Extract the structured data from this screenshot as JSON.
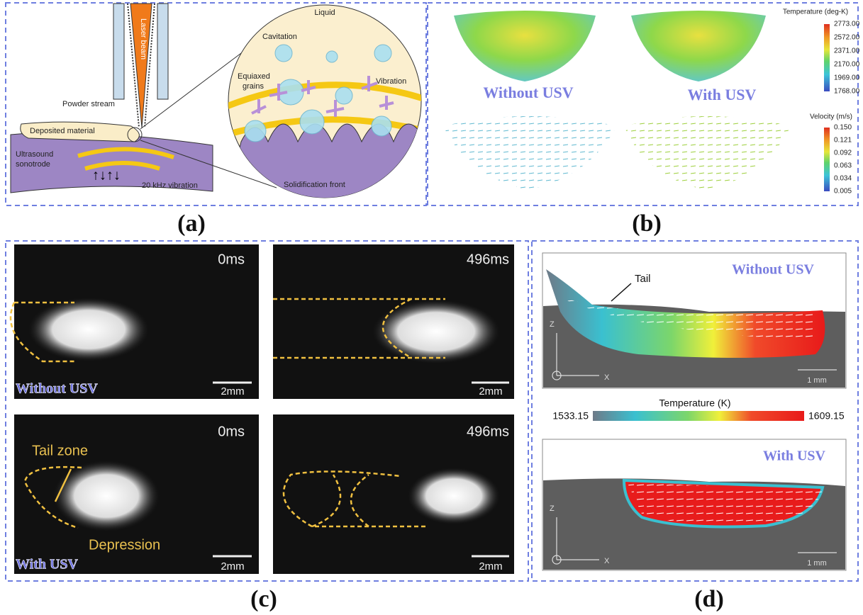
{
  "panels": {
    "a": {
      "label": "(a)",
      "liquid": "Liquid",
      "laser_beam": "Laser beam",
      "cavitation": "Cavitation",
      "powder_stream": "Powder stream",
      "equiaxed_grains": [
        "Equiaxed",
        "grains"
      ],
      "vibration": "Vibration",
      "deposited_material": "Deposited material",
      "ultrasound_sonotrode": [
        "Ultrasound",
        "sonotrode"
      ],
      "frequency": "20 kHz vibration",
      "solidification_front": "Solidification front"
    },
    "b": {
      "label": "(b)",
      "without": "Without USV",
      "with": "With USV",
      "temperature_title": "Temperature (deg-K)",
      "temperature_ticks": [
        "2773.00",
        "2572.00",
        "2371.00",
        "2170.00",
        "1969.00",
        "1768.00"
      ],
      "velocity_title": "Velocity (m/s)",
      "velocity_ticks": [
        "0.150",
        "0.121",
        "0.092",
        "0.063",
        "0.034",
        "0.005"
      ]
    },
    "c": {
      "label": "(c)",
      "images": [
        {
          "time": "0ms",
          "scale": "2mm",
          "caption": "Without USV"
        },
        {
          "time": "496ms",
          "scale": "2mm"
        },
        {
          "time": "0ms",
          "scale": "2mm",
          "caption": "With USV",
          "tail_zone": "Tail zone",
          "depression": "Depression"
        },
        {
          "time": "496ms",
          "scale": "2mm"
        }
      ]
    },
    "d": {
      "label": "(d)",
      "colorbar_title": "Temperature (K)",
      "colorbar_min": "1533.15",
      "colorbar_max": "1609.15",
      "top": {
        "caption": "Without USV",
        "tail": "Tail",
        "z": "Z",
        "x": "X",
        "scale": "1 mm"
      },
      "bottom": {
        "caption": "With USV",
        "z": "Z",
        "x": "X",
        "scale": "1 mm"
      }
    }
  }
}
